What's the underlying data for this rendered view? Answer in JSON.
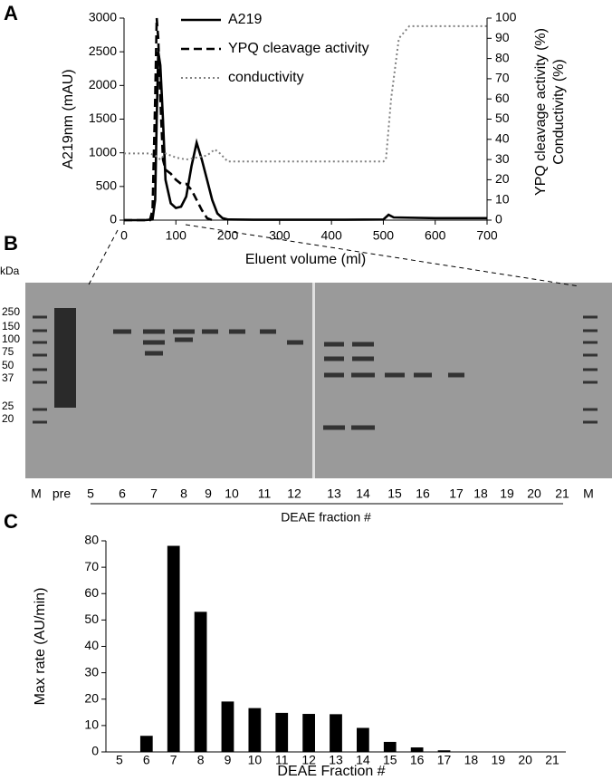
{
  "panel_labels": [
    "A",
    "B",
    "C"
  ],
  "chart_data": [
    {
      "type": "line",
      "xlabel": "Eluent volume (ml)",
      "ylabel": "A219nm (mAU)",
      "y2label": [
        "YPQ cleavage activity  (%)",
        "Conductivity (%)"
      ],
      "xlim": [
        0,
        700
      ],
      "xticks": [
        0,
        100,
        200,
        300,
        400,
        500,
        600,
        700
      ],
      "ylim": [
        0,
        3000
      ],
      "yticks": [
        0,
        500,
        1000,
        1500,
        2000,
        2500,
        3000
      ],
      "y2lim": [
        0,
        100
      ],
      "y2ticks": [
        0,
        10,
        20,
        30,
        40,
        50,
        60,
        70,
        80,
        90,
        100
      ],
      "legend": "upper center",
      "series": [
        {
          "name": "A219",
          "color": "#000000",
          "style": "solid",
          "x": [
            0,
            40,
            55,
            60,
            63,
            66,
            70,
            75,
            80,
            90,
            100,
            110,
            120,
            130,
            140,
            150,
            160,
            170,
            180,
            190,
            200,
            250,
            300,
            400,
            500,
            510,
            520,
            600,
            700
          ],
          "values": [
            0,
            0,
            10,
            300,
            1500,
            2500,
            2300,
            1500,
            600,
            250,
            180,
            200,
            350,
            800,
            1150,
            900,
            600,
            300,
            100,
            30,
            10,
            5,
            5,
            5,
            10,
            80,
            40,
            30,
            30
          ]
        },
        {
          "name": "YPQ cleavage activity",
          "color": "#000000",
          "style": "dashed",
          "axis": "y2",
          "x": [
            0,
            50,
            55,
            60,
            63,
            66,
            70,
            75,
            80,
            90,
            100,
            110,
            120,
            130,
            140,
            150,
            160,
            170
          ],
          "values": [
            0,
            0,
            5,
            60,
            100,
            90,
            60,
            30,
            25,
            23,
            20,
            18,
            18,
            15,
            10,
            5,
            1,
            0
          ]
        },
        {
          "name": "conductivity",
          "color": "#808080",
          "style": "dotted",
          "axis": "y2",
          "x": [
            0,
            50,
            60,
            70,
            80,
            100,
            120,
            140,
            160,
            175,
            185,
            200,
            300,
            400,
            500,
            505,
            515,
            530,
            550,
            600,
            700
          ],
          "values": [
            33,
            33,
            32,
            30,
            33,
            31,
            30,
            31,
            32,
            35,
            33,
            29,
            29,
            29,
            29,
            30,
            60,
            90,
            96,
            96,
            96
          ]
        }
      ]
    },
    {
      "type": "bar",
      "xlabel": "DEAE Fraction #",
      "ylabel": "Max rate (AU/min)",
      "categories": [
        "5",
        "6",
        "7",
        "8",
        "9",
        "10",
        "11",
        "12",
        "13",
        "14",
        "15",
        "16",
        "17",
        "18",
        "19",
        "20",
        "21"
      ],
      "values": [
        0,
        6,
        78,
        53,
        19,
        16.5,
        14.7,
        14.3,
        14.2,
        9,
        3.7,
        1.6,
        0.5,
        0,
        0,
        0,
        0
      ],
      "color": "#000000",
      "ylim": [
        0,
        80
      ],
      "yticks": [
        0,
        10,
        20,
        30,
        40,
        50,
        60,
        70,
        80
      ]
    }
  ],
  "gel": {
    "unit": "kDa",
    "markers": [
      "250",
      "150",
      "100",
      "75",
      "50",
      "37",
      "25",
      "20"
    ],
    "lanes": [
      "M",
      "pre",
      "5",
      "6",
      "7",
      "8",
      "9",
      "10",
      "11",
      "12",
      "13",
      "14",
      "15",
      "16",
      "17",
      "18",
      "19",
      "20",
      "21",
      "M"
    ],
    "group_label": "DEAE fraction #"
  }
}
